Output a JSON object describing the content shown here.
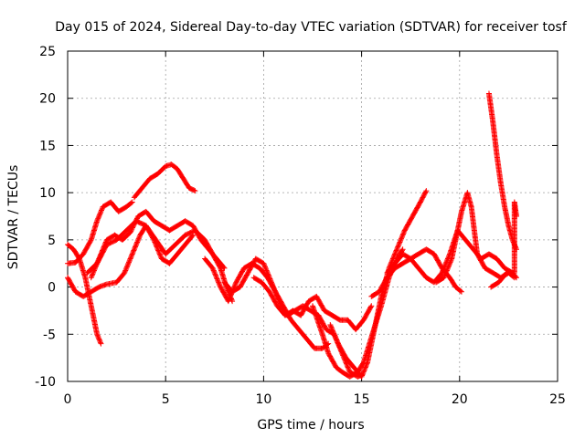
{
  "chart_data": {
    "type": "scatter",
    "title": "Day 015 of 2024, Sidereal Day-to-day VTEC variation (SDTVAR) for receiver tosf",
    "xlabel": "GPS time / hours",
    "ylabel": "SDTVAR / TECUs",
    "xlim": [
      0,
      25
    ],
    "ylim": [
      -10,
      25
    ],
    "xticks": [
      0,
      5,
      10,
      15,
      20,
      25
    ],
    "yticks": [
      -10,
      -5,
      0,
      5,
      10,
      15,
      20,
      25
    ],
    "grid": true,
    "marker": "+",
    "color": "#ff0000",
    "series": [
      {
        "name": "trace-1",
        "x": [
          0.0,
          0.3,
          0.6,
          0.9,
          1.2,
          1.5,
          1.7
        ],
        "y": [
          4.5,
          4.0,
          3.0,
          1.0,
          -2.0,
          -5.0,
          -6.0
        ]
      },
      {
        "name": "trace-2",
        "x": [
          0.0,
          0.4,
          0.8,
          1.2,
          1.6,
          2.0,
          2.5,
          2.9,
          3.3,
          3.7,
          4.0,
          4.4,
          4.8,
          5.2,
          5.6,
          6.0,
          6.4
        ],
        "y": [
          1.0,
          -0.5,
          -1.0,
          -0.5,
          0.0,
          0.3,
          0.5,
          1.5,
          3.5,
          5.5,
          6.5,
          5.0,
          3.0,
          2.5,
          3.5,
          4.5,
          5.5
        ]
      },
      {
        "name": "trace-3",
        "x": [
          0.0,
          0.4,
          0.8,
          1.2,
          1.5,
          1.8,
          2.2,
          2.6,
          3.0,
          3.3
        ],
        "y": [
          2.5,
          2.6,
          3.5,
          5.0,
          7.0,
          8.5,
          9.0,
          8.0,
          8.5,
          9.0
        ]
      },
      {
        "name": "trace-4",
        "x": [
          3.4,
          3.8,
          4.2,
          4.6,
          5.0,
          5.3,
          5.6,
          5.9,
          6.2,
          6.5
        ],
        "y": [
          9.5,
          10.5,
          11.5,
          12.0,
          12.8,
          13.0,
          12.5,
          11.5,
          10.5,
          10.2
        ]
      },
      {
        "name": "trace-5",
        "x": [
          1.2,
          1.6,
          2.0,
          2.4,
          2.8,
          3.2,
          3.6,
          4.0,
          4.4,
          4.8,
          5.2,
          5.6,
          6.0,
          6.4,
          6.8,
          7.2,
          7.6,
          8.0
        ],
        "y": [
          1.0,
          3.0,
          5.0,
          5.5,
          5.0,
          5.8,
          7.5,
          8.0,
          7.0,
          6.5,
          6.0,
          6.5,
          7.0,
          6.5,
          5.0,
          4.0,
          3.0,
          2.0
        ]
      },
      {
        "name": "trace-6",
        "x": [
          1.0,
          1.5,
          2.0,
          2.5,
          3.0,
          3.5,
          4.0,
          4.5,
          5.0,
          5.5,
          6.0,
          6.5,
          7.0,
          7.4,
          7.8,
          8.1,
          8.4
        ],
        "y": [
          1.5,
          2.5,
          4.5,
          5.0,
          6.0,
          7.0,
          6.5,
          5.0,
          3.5,
          4.5,
          5.5,
          6.0,
          5.0,
          3.5,
          2.0,
          0.0,
          -1.5
        ]
      },
      {
        "name": "trace-7",
        "x": [
          7.0,
          7.4,
          7.8,
          8.2,
          8.6,
          9.0,
          9.4,
          9.8,
          10.2,
          10.6,
          11.0,
          11.4,
          11.8,
          12.2,
          12.6,
          13.0,
          13.3
        ],
        "y": [
          3.0,
          2.0,
          0.0,
          -1.5,
          0.5,
          2.0,
          2.5,
          2.0,
          1.0,
          -0.5,
          -2.0,
          -3.5,
          -4.5,
          -5.5,
          -6.5,
          -6.5,
          -6.0
        ]
      },
      {
        "name": "trace-8",
        "x": [
          8.0,
          8.4,
          8.8,
          9.2,
          9.6,
          10.0,
          10.4,
          10.8,
          11.2,
          11.6,
          12.0,
          12.4,
          12.8,
          13.2,
          13.6,
          14.0,
          14.4,
          14.8,
          15.0
        ],
        "y": [
          0.5,
          -0.5,
          0.0,
          1.5,
          3.0,
          2.5,
          0.5,
          -1.5,
          -3.0,
          -2.5,
          -2.0,
          -2.5,
          -3.0,
          -4.5,
          -5.0,
          -7.0,
          -9.0,
          -9.5,
          -9.3
        ]
      },
      {
        "name": "trace-9",
        "x": [
          9.5,
          9.9,
          10.3,
          10.7,
          11.1,
          11.5,
          11.9,
          12.3,
          12.7,
          13.1,
          13.5,
          13.9,
          14.3,
          14.7,
          15.1,
          15.5
        ],
        "y": [
          1.0,
          0.5,
          -0.5,
          -2.0,
          -3.0,
          -2.5,
          -3.0,
          -1.5,
          -1.0,
          -2.5,
          -3.0,
          -3.5,
          -3.5,
          -4.5,
          -3.5,
          -2.0
        ]
      },
      {
        "name": "trace-10",
        "x": [
          12.5,
          13.0,
          13.3,
          13.7,
          14.0,
          14.4,
          14.8,
          15.1,
          15.4,
          15.7,
          16.0,
          16.4,
          16.8,
          17.1
        ],
        "y": [
          -2.0,
          -5.0,
          -7.0,
          -8.5,
          -9.0,
          -9.5,
          -9.0,
          -8.0,
          -6.0,
          -4.0,
          -2.0,
          1.0,
          3.0,
          4.0
        ]
      },
      {
        "name": "trace-11",
        "x": [
          13.4,
          13.8,
          14.2,
          14.6,
          15.0,
          15.3,
          15.6,
          16.0,
          16.4,
          16.8,
          17.2,
          17.6,
          18.0,
          18.3
        ],
        "y": [
          -4.0,
          -6.0,
          -7.5,
          -8.5,
          -9.5,
          -8.0,
          -5.0,
          -1.0,
          2.0,
          4.0,
          6.0,
          7.5,
          9.0,
          10.2
        ]
      },
      {
        "name": "trace-12",
        "x": [
          15.5,
          15.9,
          16.3,
          16.7,
          17.1,
          17.5,
          17.9,
          18.3,
          18.7,
          19.1,
          19.5,
          19.8,
          20.1
        ],
        "y": [
          -1.0,
          -0.5,
          1.0,
          2.0,
          2.5,
          3.0,
          3.5,
          4.0,
          3.5,
          2.0,
          1.0,
          0.0,
          -0.5
        ]
      },
      {
        "name": "trace-13",
        "x": [
          16.3,
          16.7,
          17.1,
          17.5,
          17.9,
          18.3,
          18.7,
          19.1,
          19.5,
          19.9,
          20.3,
          20.7,
          21.1,
          21.5,
          21.9,
          22.3,
          22.7,
          22.9
        ],
        "y": [
          1.5,
          2.5,
          3.5,
          3.0,
          2.0,
          1.0,
          0.5,
          1.5,
          3.5,
          6.0,
          5.0,
          4.0,
          3.0,
          3.5,
          3.0,
          2.0,
          1.5,
          1.0
        ]
      },
      {
        "name": "trace-14",
        "x": [
          18.8,
          19.2,
          19.6,
          19.9,
          20.1,
          20.4,
          20.6,
          20.9,
          21.3,
          21.7,
          22.1,
          22.5,
          22.8
        ],
        "y": [
          0.5,
          1.0,
          3.0,
          6.0,
          8.0,
          10.0,
          8.5,
          3.5,
          2.0,
          1.5,
          1.0,
          1.5,
          1.0
        ]
      },
      {
        "name": "trace-15",
        "x": [
          21.5,
          21.7,
          21.9,
          22.1,
          22.3,
          22.5,
          22.7,
          22.9
        ],
        "y": [
          20.5,
          17.5,
          14.0,
          11.0,
          8.5,
          6.5,
          5.0,
          4.0
        ]
      },
      {
        "name": "trace-16",
        "x": [
          21.6,
          22.0,
          22.4,
          22.8,
          22.8,
          22.9
        ],
        "y": [
          0.0,
          0.5,
          1.5,
          1.5,
          9.0,
          7.5
        ]
      }
    ]
  }
}
